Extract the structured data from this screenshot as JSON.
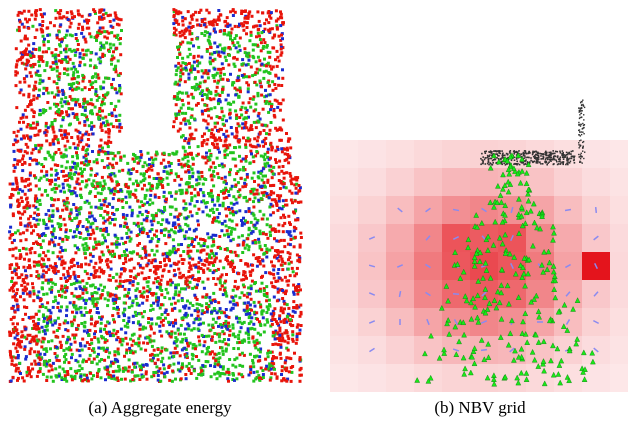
{
  "figure": {
    "panel_a": {
      "caption": "(a)  Aggregate energy",
      "colors": {
        "high_energy": "#e8140a",
        "mid_energy": "#22c41e",
        "low_energy": "#1a2ccf"
      }
    },
    "panel_b": {
      "caption": "(b)  NBV grid",
      "colors": {
        "cell_max": "#e4141c",
        "cell_min": "#fde9ea",
        "camera": "#18e818",
        "cloud": "#333333",
        "direction": "#8a8af0"
      }
    }
  }
}
